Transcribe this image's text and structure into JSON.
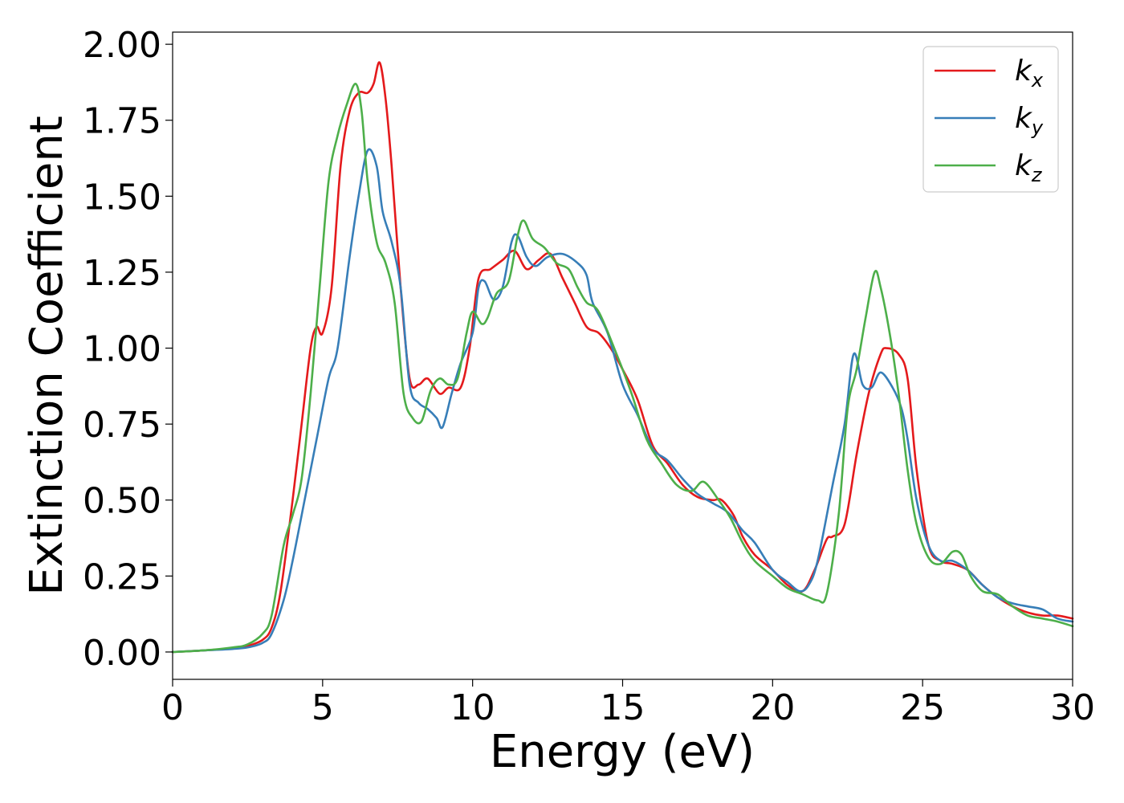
{
  "chart_data": {
    "type": "line",
    "xlabel": "Energy (eV)",
    "ylabel": "Extinction Coefficient",
    "xlim": [
      0,
      30
    ],
    "ylim": [
      -0.09,
      2.04
    ],
    "x_ticks": [
      0,
      5,
      10,
      15,
      20,
      25,
      30
    ],
    "y_ticks": [
      "0.00",
      "0.25",
      "0.50",
      "0.75",
      "1.00",
      "1.25",
      "1.50",
      "1.75",
      "2.00"
    ],
    "grid": false,
    "legend": {
      "placement": "top-right",
      "entries": [
        {
          "base": "k",
          "sub": "x",
          "color": "#e41a1c"
        },
        {
          "base": "k",
          "sub": "y",
          "color": "#377eb8"
        },
        {
          "base": "k",
          "sub": "z",
          "color": "#4daf4a"
        }
      ]
    },
    "series": [
      {
        "name": "k_x",
        "color": "#e41a1c",
        "points": [
          [
            0,
            0
          ],
          [
            1,
            0.005
          ],
          [
            2,
            0.012
          ],
          [
            2.5,
            0.02
          ],
          [
            3,
            0.04
          ],
          [
            3.3,
            0.08
          ],
          [
            3.6,
            0.2
          ],
          [
            4,
            0.5
          ],
          [
            4.3,
            0.75
          ],
          [
            4.6,
            1.0
          ],
          [
            4.8,
            1.07
          ],
          [
            5,
            1.05
          ],
          [
            5.3,
            1.2
          ],
          [
            5.6,
            1.6
          ],
          [
            5.9,
            1.78
          ],
          [
            6.2,
            1.84
          ],
          [
            6.5,
            1.84
          ],
          [
            6.7,
            1.87
          ],
          [
            6.9,
            1.94
          ],
          [
            7.1,
            1.82
          ],
          [
            7.3,
            1.6
          ],
          [
            7.6,
            1.2
          ],
          [
            7.9,
            0.9
          ],
          [
            8.2,
            0.88
          ],
          [
            8.5,
            0.9
          ],
          [
            8.9,
            0.85
          ],
          [
            9.2,
            0.87
          ],
          [
            9.6,
            0.87
          ],
          [
            9.9,
            1.0
          ],
          [
            10.2,
            1.23
          ],
          [
            10.6,
            1.26
          ],
          [
            11,
            1.29
          ],
          [
            11.4,
            1.32
          ],
          [
            11.8,
            1.26
          ],
          [
            12.2,
            1.29
          ],
          [
            12.6,
            1.31
          ],
          [
            13,
            1.23
          ],
          [
            13.4,
            1.15
          ],
          [
            13.8,
            1.07
          ],
          [
            14.2,
            1.05
          ],
          [
            14.6,
            1.0
          ],
          [
            15,
            0.93
          ],
          [
            15.5,
            0.83
          ],
          [
            16,
            0.68
          ],
          [
            16.5,
            0.62
          ],
          [
            17,
            0.55
          ],
          [
            17.5,
            0.51
          ],
          [
            18,
            0.5
          ],
          [
            18.3,
            0.5
          ],
          [
            18.7,
            0.45
          ],
          [
            19,
            0.38
          ],
          [
            19.4,
            0.32
          ],
          [
            20,
            0.27
          ],
          [
            20.5,
            0.22
          ],
          [
            21,
            0.2
          ],
          [
            21.4,
            0.27
          ],
          [
            21.8,
            0.37
          ],
          [
            22,
            0.38
          ],
          [
            22.4,
            0.42
          ],
          [
            22.8,
            0.65
          ],
          [
            23.2,
            0.85
          ],
          [
            23.6,
            0.98
          ],
          [
            23.8,
            1.0
          ],
          [
            24.2,
            0.98
          ],
          [
            24.5,
            0.9
          ],
          [
            24.8,
            0.6
          ],
          [
            25.2,
            0.35
          ],
          [
            25.6,
            0.3
          ],
          [
            26,
            0.29
          ],
          [
            26.5,
            0.27
          ],
          [
            27,
            0.22
          ],
          [
            27.5,
            0.18
          ],
          [
            28,
            0.15
          ],
          [
            28.5,
            0.13
          ],
          [
            29,
            0.12
          ],
          [
            29.5,
            0.12
          ],
          [
            30,
            0.11
          ]
        ]
      },
      {
        "name": "k_y",
        "color": "#377eb8",
        "points": [
          [
            0,
            0
          ],
          [
            1,
            0.005
          ],
          [
            2,
            0.01
          ],
          [
            2.5,
            0.015
          ],
          [
            3,
            0.03
          ],
          [
            3.3,
            0.06
          ],
          [
            3.7,
            0.17
          ],
          [
            4,
            0.3
          ],
          [
            4.4,
            0.5
          ],
          [
            4.8,
            0.7
          ],
          [
            5.2,
            0.9
          ],
          [
            5.5,
            1.0
          ],
          [
            5.9,
            1.3
          ],
          [
            6.2,
            1.5
          ],
          [
            6.5,
            1.65
          ],
          [
            6.8,
            1.6
          ],
          [
            7,
            1.45
          ],
          [
            7.3,
            1.35
          ],
          [
            7.6,
            1.2
          ],
          [
            7.9,
            0.88
          ],
          [
            8.2,
            0.82
          ],
          [
            8.5,
            0.8
          ],
          [
            8.8,
            0.77
          ],
          [
            9,
            0.74
          ],
          [
            9.3,
            0.85
          ],
          [
            9.6,
            0.95
          ],
          [
            10,
            1.05
          ],
          [
            10.2,
            1.2
          ],
          [
            10.4,
            1.22
          ],
          [
            10.7,
            1.16
          ],
          [
            11,
            1.2
          ],
          [
            11.3,
            1.35
          ],
          [
            11.5,
            1.37
          ],
          [
            11.8,
            1.3
          ],
          [
            12.1,
            1.27
          ],
          [
            12.5,
            1.3
          ],
          [
            13,
            1.31
          ],
          [
            13.5,
            1.28
          ],
          [
            13.8,
            1.24
          ],
          [
            14,
            1.15
          ],
          [
            14.5,
            1.05
          ],
          [
            15,
            0.88
          ],
          [
            15.5,
            0.78
          ],
          [
            16,
            0.67
          ],
          [
            16.5,
            0.63
          ],
          [
            17,
            0.57
          ],
          [
            17.5,
            0.52
          ],
          [
            18,
            0.49
          ],
          [
            18.5,
            0.46
          ],
          [
            19,
            0.4
          ],
          [
            19.4,
            0.36
          ],
          [
            20,
            0.27
          ],
          [
            20.5,
            0.23
          ],
          [
            20.9,
            0.2
          ],
          [
            21.2,
            0.22
          ],
          [
            21.5,
            0.3
          ],
          [
            22,
            0.55
          ],
          [
            22.4,
            0.75
          ],
          [
            22.7,
            0.98
          ],
          [
            23,
            0.88
          ],
          [
            23.3,
            0.87
          ],
          [
            23.6,
            0.92
          ],
          [
            24,
            0.87
          ],
          [
            24.3,
            0.8
          ],
          [
            24.5,
            0.7
          ],
          [
            24.8,
            0.5
          ],
          [
            25.2,
            0.35
          ],
          [
            25.6,
            0.3
          ],
          [
            26,
            0.3
          ],
          [
            26.5,
            0.27
          ],
          [
            27,
            0.22
          ],
          [
            27.5,
            0.18
          ],
          [
            28,
            0.16
          ],
          [
            28.5,
            0.15
          ],
          [
            29,
            0.14
          ],
          [
            29.5,
            0.11
          ],
          [
            30,
            0.1
          ]
        ]
      },
      {
        "name": "k_z",
        "color": "#4daf4a",
        "points": [
          [
            0,
            0
          ],
          [
            1,
            0.005
          ],
          [
            2,
            0.015
          ],
          [
            2.5,
            0.025
          ],
          [
            3,
            0.06
          ],
          [
            3.3,
            0.12
          ],
          [
            3.7,
            0.35
          ],
          [
            4,
            0.45
          ],
          [
            4.3,
            0.57
          ],
          [
            4.6,
            0.85
          ],
          [
            4.9,
            1.2
          ],
          [
            5.2,
            1.55
          ],
          [
            5.5,
            1.7
          ],
          [
            5.8,
            1.8
          ],
          [
            6.1,
            1.87
          ],
          [
            6.3,
            1.78
          ],
          [
            6.5,
            1.55
          ],
          [
            6.8,
            1.35
          ],
          [
            7.1,
            1.28
          ],
          [
            7.4,
            1.15
          ],
          [
            7.7,
            0.85
          ],
          [
            8,
            0.77
          ],
          [
            8.3,
            0.76
          ],
          [
            8.6,
            0.86
          ],
          [
            8.9,
            0.9
          ],
          [
            9.2,
            0.88
          ],
          [
            9.5,
            0.9
          ],
          [
            9.8,
            1.05
          ],
          [
            10,
            1.12
          ],
          [
            10.3,
            1.08
          ],
          [
            10.5,
            1.1
          ],
          [
            10.8,
            1.18
          ],
          [
            11.2,
            1.22
          ],
          [
            11.5,
            1.37
          ],
          [
            11.7,
            1.42
          ],
          [
            12,
            1.36
          ],
          [
            12.4,
            1.33
          ],
          [
            12.8,
            1.28
          ],
          [
            13.2,
            1.26
          ],
          [
            13.5,
            1.2
          ],
          [
            13.8,
            1.15
          ],
          [
            14.2,
            1.12
          ],
          [
            14.8,
            0.98
          ],
          [
            15.3,
            0.85
          ],
          [
            15.8,
            0.7
          ],
          [
            16.3,
            0.62
          ],
          [
            16.8,
            0.55
          ],
          [
            17.3,
            0.53
          ],
          [
            17.7,
            0.56
          ],
          [
            18.2,
            0.5
          ],
          [
            18.6,
            0.44
          ],
          [
            19,
            0.36
          ],
          [
            19.4,
            0.3
          ],
          [
            20,
            0.25
          ],
          [
            20.5,
            0.21
          ],
          [
            21,
            0.19
          ],
          [
            21.5,
            0.17
          ],
          [
            21.8,
            0.19
          ],
          [
            22.2,
            0.45
          ],
          [
            22.5,
            0.8
          ],
          [
            22.8,
            0.93
          ],
          [
            23.1,
            1.1
          ],
          [
            23.4,
            1.25
          ],
          [
            23.6,
            1.2
          ],
          [
            23.9,
            1.05
          ],
          [
            24.2,
            0.85
          ],
          [
            24.5,
            0.6
          ],
          [
            24.8,
            0.42
          ],
          [
            25.2,
            0.31
          ],
          [
            25.6,
            0.29
          ],
          [
            26,
            0.33
          ],
          [
            26.3,
            0.32
          ],
          [
            26.6,
            0.25
          ],
          [
            27,
            0.2
          ],
          [
            27.5,
            0.19
          ],
          [
            28,
            0.15
          ],
          [
            28.5,
            0.12
          ],
          [
            29,
            0.11
          ],
          [
            29.5,
            0.1
          ],
          [
            30,
            0.085
          ]
        ]
      }
    ]
  }
}
